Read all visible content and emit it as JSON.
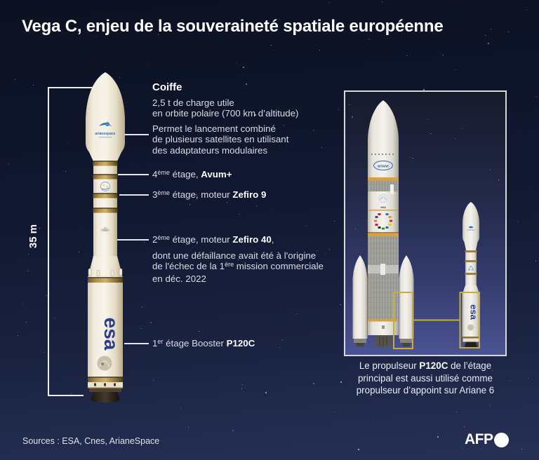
{
  "title": "Vega C, enjeu de la souveraineté spatiale européenne",
  "measurement": {
    "height_label": "35 m"
  },
  "annotations": {
    "coiffe": {
      "heading": "Coiffe",
      "payload_line1": "2,5 t de charge utile",
      "payload_line2": "en orbite polaire (700 km d’altitude)",
      "desc_line1": "Permet le lancement combiné",
      "desc_line2": "de plusieurs satellites en utilisant",
      "desc_line3": "des adaptateurs modulaires"
    },
    "stage4": {
      "num": "4",
      "sup": "ème",
      "label": " étage, ",
      "name": "Avum+"
    },
    "stage3": {
      "num": "3",
      "sup": "ème",
      "label": " étage, moteur ",
      "name": "Zefiro 9"
    },
    "stage2": {
      "num": "2",
      "sup": "ème",
      "label": " étage, moteur ",
      "name": "Zefiro 40",
      "comma": ",",
      "desc_line1": "dont une défaillance avait été à l'origine",
      "desc_line2_pre": "de l'échec de la 1",
      "desc_line2_sup": "ère",
      "desc_line2_post": " mission commerciale",
      "desc_line3": "en déc. 2022"
    },
    "stage1": {
      "num": "1",
      "sup": "er",
      "label": " étage Booster ",
      "name": "P120C"
    }
  },
  "comparison_panel": {
    "caption_line1_pre": "Le propulseur ",
    "caption_line1_bold": "P120C",
    "caption_line1_post": " de l’étage",
    "caption_line2": "principal est aussi utilisé comme",
    "caption_line3": "propulseur d’appoint sur Ariane 6"
  },
  "rocket_markings": {
    "arianespace": "arianespace",
    "ariane": "ariane",
    "esa_vega": "esa",
    "esa_vega_small": "esa",
    "esa_ariane": "esa"
  },
  "footer": {
    "sources": "Sources : ESA, Cnes, ArianeSpace",
    "afp": "AFP"
  },
  "colors": {
    "background_top": "#0c1221",
    "background_bottom": "#273157",
    "accent_gold": "#c9ad3a",
    "ariane_orange": "#d7a041",
    "esa_blue": "#2b3c91",
    "arianespace_blue": "#2f6db5"
  }
}
